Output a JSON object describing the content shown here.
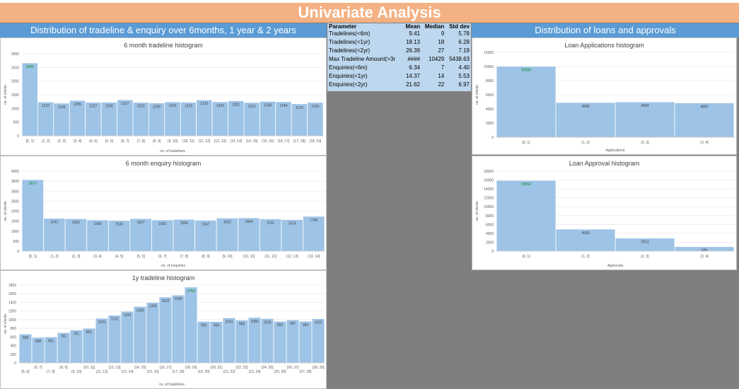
{
  "page": {
    "title": "Univariate Analysis",
    "left_section_header": "Distribution of tradeline & enquiry over 6months, 1 year & 2 years",
    "right_section_header": "Distribution of loans and approvals"
  },
  "colors": {
    "title_banner": "#f4b183",
    "section_header": "#5b9bd5",
    "stats_bg": "#bdd7ee",
    "bar_fill": "#9dc3e6",
    "highlight_label": "#2e9b5a"
  },
  "stats_table": {
    "headers": [
      "Parameter",
      "Mean",
      "Median",
      "Std dev"
    ],
    "rows": [
      {
        "param": "Tradelines(<6m)",
        "mean": "9.41",
        "median": "9",
        "std": "5.78"
      },
      {
        "param": "Tradelines(<1yr)",
        "mean": "18.13",
        "median": "18",
        "std": "6.28"
      },
      {
        "param": "Tradelines(<2yr)",
        "mean": "26.39",
        "median": "27",
        "std": "7.19"
      },
      {
        "param": "Max Tradeline Amount(>3r",
        "mean": "####",
        "median": "10429",
        "std": "5438.63"
      },
      {
        "param": "Enquiries(<6m)",
        "mean": "6.34",
        "median": "7",
        "std": "4.40"
      },
      {
        "param": "Enquiries(<1yr)",
        "mean": "14.37",
        "median": "14",
        "std": "5.53"
      },
      {
        "param": "Enquiries(<2yr)",
        "mean": "21.62",
        "median": "22",
        "std": "6.97"
      }
    ]
  },
  "chart_data": [
    {
      "type": "bar",
      "title": "6 month tradeline histogram",
      "xlabel": "no. of tradelines",
      "ylabel": "no. of clients",
      "ylim": [
        0,
        3000
      ],
      "yticks": [
        0,
        500,
        1000,
        1500,
        2000,
        2500,
        3000
      ],
      "categories": [
        "[0, 1]",
        "(1, 2]",
        "(2, 3]",
        "(3, 4]",
        "(4, 5]",
        "(5, 6]",
        "(6, 7]",
        "(7, 8]",
        "(8, 9]",
        "(9, 10]",
        "(10, 11]",
        "(11, 12]",
        "(12, 13]",
        "(13, 14]",
        "(14, 15]",
        "(15, 16]",
        "(16, 17]",
        "(17, 18]",
        "(18, 19]"
      ],
      "values": [
        2665,
        1237,
        1195,
        1295,
        1227,
        1230,
        1317,
        1223,
        1200,
        1242,
        1229,
        1313,
        1243,
        1281,
        1221,
        1258,
        1244,
        1170,
        1220
      ],
      "grid": true
    },
    {
      "type": "bar",
      "title": "6 month enquiry histogram",
      "xlabel": "no. of enquiries",
      "ylabel": "no. of clients",
      "ylim": [
        0,
        4000
      ],
      "yticks": [
        0,
        500,
        1000,
        1500,
        2000,
        2500,
        3000,
        3500,
        4000
      ],
      "categories": [
        "[0, 1]",
        "(1, 2]",
        "(2, 3]",
        "(3, 4]",
        "(4, 5]",
        "(5, 6]",
        "(6, 7]",
        "(7, 8]",
        "(8, 9]",
        "(9, 10]",
        "(10, 11]",
        "(11, 12]",
        "(12, 13]",
        "(13, 14]"
      ],
      "values": [
        3577,
        1641,
        1620,
        1559,
        1536,
        1627,
        1562,
        1590,
        1547,
        1652,
        1664,
        1611,
        1574,
        1740
      ],
      "grid": true
    },
    {
      "type": "bar",
      "title": "1y tradeline histogram",
      "xlabel": "no. of tradelines",
      "ylabel": "no. of clients",
      "ylim": [
        0,
        1800
      ],
      "yticks": [
        0,
        200,
        400,
        600,
        800,
        1000,
        1200,
        1400,
        1600,
        1800
      ],
      "categories": [
        "[5, 6]",
        "(6, 7]",
        "(7, 8]",
        "(8, 9]",
        "(9, 10]",
        "(10, 11]",
        "(11, 12]",
        "(12, 13]",
        "(13, 14]",
        "(14, 15]",
        "(15, 16]",
        "(16, 17]",
        "(17, 18]",
        "(18, 19]",
        "(19, 20]",
        "(20, 21]",
        "(21, 22]",
        "(22, 23]",
        "(23, 24]",
        "(24, 25]",
        "(25, 26]",
        "(26, 27]",
        "(27, 28]",
        "(28, 29]"
      ],
      "values": [
        668,
        588,
        601,
        701,
        761,
        801,
        1031,
        1101,
        1193,
        1305,
        1399,
        1522,
        1568,
        1754,
        959,
        956,
        1041,
        989,
        1050,
        1026,
        962,
        997,
        963,
        1022
      ],
      "grid": true
    },
    {
      "type": "bar",
      "title": "Loan Applications histogram",
      "xlabel": "Applications",
      "ylabel": "no. of clients",
      "ylim": [
        0,
        12000
      ],
      "yticks": [
        0,
        2000,
        4000,
        6000,
        8000,
        10000,
        12000
      ],
      "categories": [
        "[0, 1]",
        "(1, 2]",
        "(2, 3]",
        "(3, 4]"
      ],
      "values": [
        10028,
        4909,
        4994,
        4850
      ],
      "grid": true
    },
    {
      "type": "bar",
      "title": "Loan Approval histogram",
      "xlabel": "Approvals",
      "ylabel": "no. of clients",
      "ylim": [
        0,
        18000
      ],
      "yticks": [
        0,
        2000,
        4000,
        6000,
        8000,
        10000,
        12000,
        14000,
        16000,
        18000
      ],
      "categories": [
        "[0, 1]",
        "(1, 2]",
        "(2, 3]",
        "(3, 4]"
      ],
      "values": [
        15914,
        4939,
        2913,
        999
      ],
      "grid": true
    }
  ]
}
